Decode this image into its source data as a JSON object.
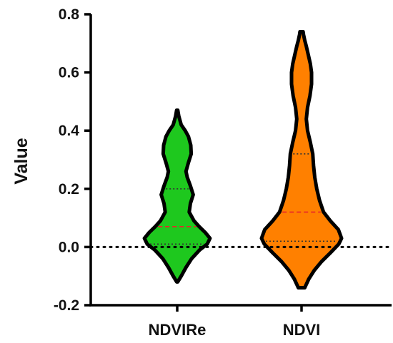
{
  "chart_data": {
    "type": "violin",
    "ylabel": "Value",
    "ylim": [
      -0.2,
      0.8
    ],
    "yticks": [
      -0.2,
      0.0,
      0.2,
      0.4,
      0.6,
      0.8
    ],
    "ytick_labels": [
      "-0.2",
      "0.0",
      "0.2",
      "0.4",
      "0.6",
      "0.8"
    ],
    "reference_line_y": 0.0,
    "categories": [
      "NDVIRe",
      "NDVI"
    ],
    "series": [
      {
        "name": "NDVIRe",
        "color": "#1ec81e",
        "min": -0.12,
        "max": 0.47,
        "median": 0.07,
        "q1": 0.01,
        "q3": 0.2,
        "profile": [
          [
            -0.12,
            0.01
          ],
          [
            -0.1,
            0.1
          ],
          [
            -0.07,
            0.22
          ],
          [
            -0.04,
            0.36
          ],
          [
            -0.01,
            0.56
          ],
          [
            0.01,
            0.75
          ],
          [
            0.03,
            0.82
          ],
          [
            0.05,
            0.7
          ],
          [
            0.07,
            0.55
          ],
          [
            0.09,
            0.42
          ],
          [
            0.12,
            0.3
          ],
          [
            0.15,
            0.33
          ],
          [
            0.18,
            0.4
          ],
          [
            0.21,
            0.33
          ],
          [
            0.24,
            0.25
          ],
          [
            0.26,
            0.22
          ],
          [
            0.29,
            0.28
          ],
          [
            0.32,
            0.35
          ],
          [
            0.35,
            0.34
          ],
          [
            0.38,
            0.28
          ],
          [
            0.4,
            0.2
          ],
          [
            0.42,
            0.1
          ],
          [
            0.45,
            0.04
          ],
          [
            0.47,
            0.015
          ]
        ]
      },
      {
        "name": "NDVI",
        "color": "#ff8000",
        "min": -0.14,
        "max": 0.74,
        "median": 0.12,
        "q1": 0.02,
        "q3": 0.32,
        "profile": [
          [
            -0.14,
            0.08
          ],
          [
            -0.11,
            0.18
          ],
          [
            -0.08,
            0.32
          ],
          [
            -0.05,
            0.5
          ],
          [
            -0.02,
            0.72
          ],
          [
            0.01,
            0.93
          ],
          [
            0.03,
            1.0
          ],
          [
            0.06,
            0.92
          ],
          [
            0.09,
            0.72
          ],
          [
            0.12,
            0.55
          ],
          [
            0.16,
            0.45
          ],
          [
            0.2,
            0.38
          ],
          [
            0.24,
            0.33
          ],
          [
            0.28,
            0.3
          ],
          [
            0.32,
            0.28
          ],
          [
            0.36,
            0.22
          ],
          [
            0.4,
            0.15
          ],
          [
            0.44,
            0.12
          ],
          [
            0.48,
            0.15
          ],
          [
            0.52,
            0.21
          ],
          [
            0.56,
            0.25
          ],
          [
            0.6,
            0.25
          ],
          [
            0.63,
            0.22
          ],
          [
            0.66,
            0.17
          ],
          [
            0.69,
            0.12
          ],
          [
            0.71,
            0.08
          ],
          [
            0.73,
            0.05
          ],
          [
            0.74,
            0.04
          ]
        ]
      }
    ]
  }
}
